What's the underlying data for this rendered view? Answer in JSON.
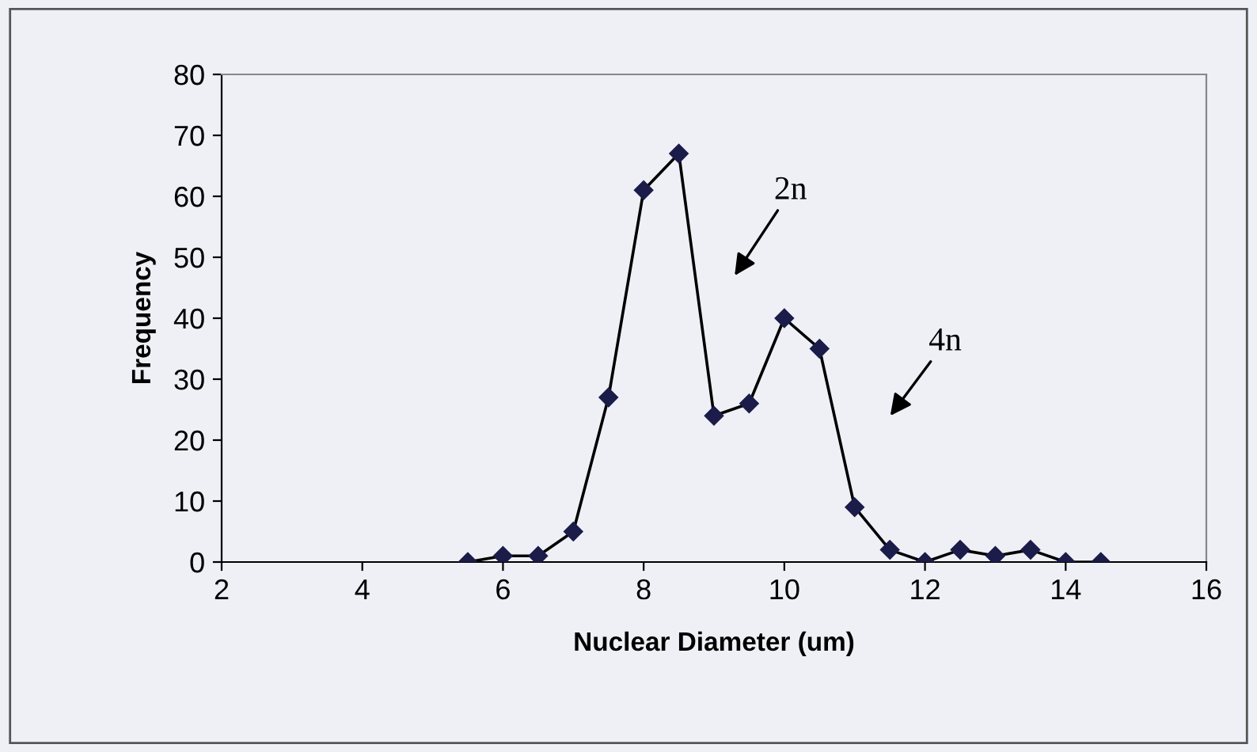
{
  "chart_data": {
    "type": "line",
    "xlabel": "Nuclear Diameter (um)",
    "ylabel": "Frequency",
    "x": [
      5.5,
      6,
      6.5,
      7,
      7.5,
      8,
      8.5,
      9,
      9.5,
      10,
      10.5,
      11,
      11.5,
      12,
      12.5,
      13,
      13.5,
      14,
      14.5
    ],
    "series": [
      {
        "color": "#1c1c4a",
        "values": [
          0,
          1,
          1,
          5,
          27,
          61,
          67,
          24,
          26,
          40,
          35,
          9,
          2,
          0,
          2,
          1,
          2,
          0,
          0
        ]
      }
    ],
    "xlim": [
      2,
      16
    ],
    "xticks": [
      2,
      4,
      6,
      8,
      10,
      12,
      14,
      16
    ],
    "ylim": [
      0,
      80
    ],
    "yticks": [
      0,
      10,
      20,
      30,
      40,
      50,
      60,
      70,
      80
    ],
    "marker": "diamond",
    "line_style": "solid",
    "grid": false,
    "legend": false,
    "annotations": [
      "2n",
      "4n"
    ]
  }
}
